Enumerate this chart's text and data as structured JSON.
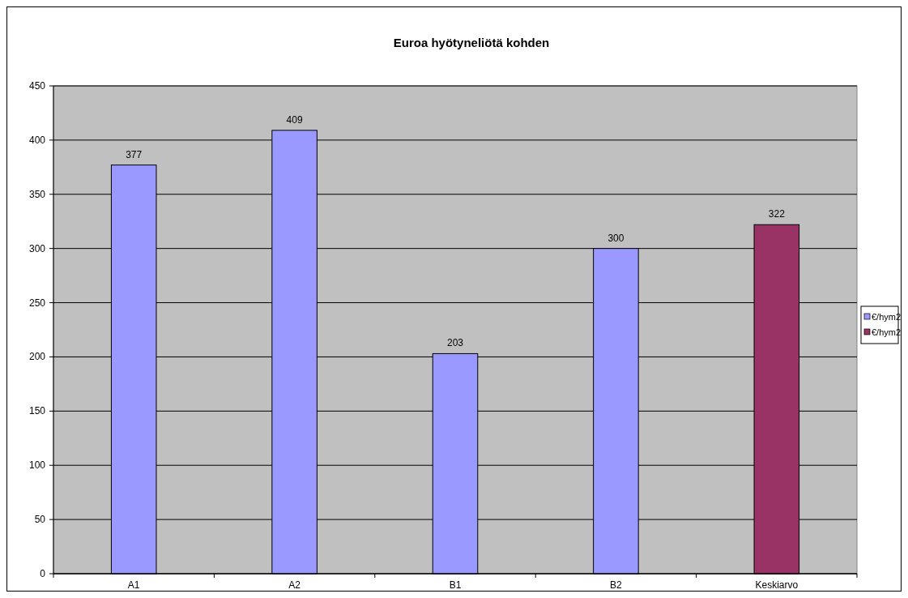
{
  "chart_data": {
    "type": "bar",
    "title": "Euroa hyötyneliötä kohden",
    "categories": [
      "A1",
      "A2",
      "B1",
      "B2",
      "Keskiarvo"
    ],
    "series": [
      {
        "name": "€/hym2",
        "color": "#9999ff",
        "values": [
          377,
          409,
          203,
          300,
          null
        ]
      },
      {
        "name": "€/hym2",
        "color": "#993366",
        "values": [
          null,
          null,
          null,
          null,
          322
        ]
      }
    ],
    "ylim": [
      0,
      450
    ],
    "yticks": [
      0,
      50,
      100,
      150,
      200,
      250,
      300,
      350,
      400,
      450
    ],
    "grid": "y",
    "legend": "right",
    "data_labels": true
  }
}
